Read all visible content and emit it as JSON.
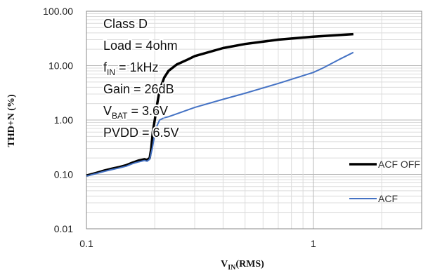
{
  "chart_data": {
    "type": "line",
    "xlabel_main": "V",
    "xlabel_sub": "IN",
    "xlabel_rest": "(RMS)",
    "ylabel": "THD+N (%)",
    "xscale": "log",
    "yscale": "log",
    "xlim": [
      0.1,
      3.0
    ],
    "ylim": [
      0.01,
      100
    ],
    "x_ticks": [
      {
        "value": 0.1,
        "label": "0.1"
      },
      {
        "value": 1,
        "label": "1"
      }
    ],
    "y_ticks": [
      {
        "value": 0.01,
        "label": "0.01"
      },
      {
        "value": 0.1,
        "label": "0.10"
      },
      {
        "value": 1,
        "label": "1.00"
      },
      {
        "value": 10,
        "label": "10.00"
      },
      {
        "value": 100,
        "label": "100.00"
      }
    ],
    "grid": true,
    "legend_position": "right",
    "annotations": [
      {
        "main": "Class D"
      },
      {
        "main": "Load = 4ohm"
      },
      {
        "main": "f",
        "sub": "IN",
        "rest": " = 1kHz"
      },
      {
        "main": "Gain = 26dB"
      },
      {
        "main": "V",
        "sub": "BAT",
        "rest": " = 3.6V"
      },
      {
        "main": "PVDD = 6.5V"
      }
    ],
    "series": [
      {
        "name": "ACF OFF",
        "color": "#000000",
        "points": [
          [
            0.1,
            0.095
          ],
          [
            0.11,
            0.106
          ],
          [
            0.12,
            0.118
          ],
          [
            0.13,
            0.128
          ],
          [
            0.14,
            0.137
          ],
          [
            0.15,
            0.148
          ],
          [
            0.16,
            0.165
          ],
          [
            0.17,
            0.18
          ],
          [
            0.18,
            0.19
          ],
          [
            0.185,
            0.185
          ],
          [
            0.19,
            0.2
          ],
          [
            0.193,
            0.3
          ],
          [
            0.196,
            0.6
          ],
          [
            0.2,
            1.0
          ],
          [
            0.205,
            2.0
          ],
          [
            0.21,
            3.5
          ],
          [
            0.22,
            6.0
          ],
          [
            0.23,
            8.0
          ],
          [
            0.25,
            10.5
          ],
          [
            0.28,
            13.0
          ],
          [
            0.3,
            15.0
          ],
          [
            0.4,
            21.0
          ],
          [
            0.5,
            25.0
          ],
          [
            0.7,
            30.0
          ],
          [
            1.0,
            34.0
          ],
          [
            1.5,
            38.0
          ]
        ]
      },
      {
        "name": "ACF",
        "color": "#4472c4",
        "points": [
          [
            0.1,
            0.093
          ],
          [
            0.11,
            0.103
          ],
          [
            0.12,
            0.114
          ],
          [
            0.13,
            0.123
          ],
          [
            0.14,
            0.132
          ],
          [
            0.15,
            0.142
          ],
          [
            0.16,
            0.158
          ],
          [
            0.17,
            0.17
          ],
          [
            0.18,
            0.18
          ],
          [
            0.185,
            0.175
          ],
          [
            0.19,
            0.19
          ],
          [
            0.195,
            0.3
          ],
          [
            0.2,
            0.55
          ],
          [
            0.205,
            0.8
          ],
          [
            0.21,
            1.0
          ],
          [
            0.22,
            1.1
          ],
          [
            0.23,
            1.15
          ],
          [
            0.25,
            1.3
          ],
          [
            0.3,
            1.7
          ],
          [
            0.4,
            2.4
          ],
          [
            0.5,
            3.1
          ],
          [
            0.7,
            4.7
          ],
          [
            1.0,
            7.5
          ],
          [
            1.1,
            9.0
          ],
          [
            1.3,
            13.0
          ],
          [
            1.5,
            17.5
          ]
        ]
      }
    ]
  }
}
